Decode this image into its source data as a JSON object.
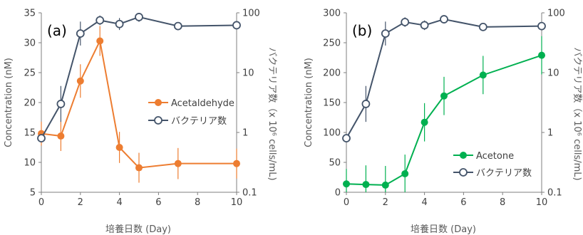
{
  "chart_data": [
    {
      "type": "line",
      "panel_label": "(a)",
      "xlabel": "培養日数 (Day)",
      "ylabel_left": "Concentration (nM)",
      "ylabel_right": "バクテリア数（x 10⁶ cells/mL)",
      "xlim": [
        0,
        10
      ],
      "xticks": [
        "0",
        "2",
        "4",
        "6",
        "8",
        "10"
      ],
      "ylim_left": [
        5,
        35
      ],
      "yticks_left": [
        "5",
        "10",
        "15",
        "20",
        "25",
        "30",
        "35"
      ],
      "ylim_right": [
        0.1,
        100
      ],
      "yscale_right": "log",
      "yticks_right": [
        "0.1",
        "1",
        "10",
        "100"
      ],
      "legend_position": "center-right",
      "series": [
        {
          "name": "Acetaldehyde",
          "axis": "left",
          "color": "#ed7d31",
          "marker": "filled-circle",
          "x": [
            0,
            1,
            2,
            3,
            4,
            5,
            7,
            10
          ],
          "y": [
            14.8,
            14.4,
            23.6,
            30.3,
            12.5,
            9.1,
            9.8,
            9.8
          ],
          "err": [
            2.0,
            2.5,
            2.8,
            2.5,
            2.6,
            2.5,
            2.6,
            2.5
          ]
        },
        {
          "name": "バクテリア数",
          "axis": "right",
          "color": "#44546a",
          "marker": "open-circle",
          "x": [
            0,
            1,
            2,
            3,
            4,
            5,
            7,
            10
          ],
          "y": [
            0.8,
            3.0,
            45,
            75,
            65,
            85,
            60,
            62
          ],
          "err_log": [
            0,
            0.3,
            0.2,
            0.08,
            0.1,
            0.08,
            0.06,
            0.05
          ]
        }
      ]
    },
    {
      "type": "line",
      "panel_label": "(b)",
      "xlabel": "培養日数 (Day)",
      "ylabel_left": "Concentration (nM)",
      "ylabel_right": "バクテリア数（x 10⁶ cells/mL)",
      "xlim": [
        0,
        10
      ],
      "xticks": [
        "0",
        "2",
        "4",
        "6",
        "8",
        "10"
      ],
      "ylim_left": [
        0,
        300
      ],
      "yticks_left": [
        "0",
        "50",
        "100",
        "150",
        "200",
        "250",
        "300"
      ],
      "ylim_right": [
        0.1,
        100
      ],
      "yscale_right": "log",
      "yticks_right": [
        "0.1",
        "1",
        "10",
        "100"
      ],
      "legend_position": "lower-right",
      "series": [
        {
          "name": "Acetone",
          "axis": "left",
          "color": "#00b050",
          "marker": "filled-circle",
          "x": [
            0,
            1,
            2,
            3,
            4,
            5,
            7,
            10
          ],
          "y": [
            14,
            13,
            12,
            31,
            117,
            161,
            196,
            229
          ],
          "err": [
            25,
            32,
            32,
            32,
            32,
            32,
            32,
            32
          ]
        },
        {
          "name": "バクテリア数",
          "axis": "right",
          "color": "#44546a",
          "marker": "open-circle",
          "x": [
            0,
            1,
            2,
            3,
            4,
            5,
            7,
            10
          ],
          "y": [
            0.8,
            3.0,
            45,
            70,
            62,
            78,
            58,
            60
          ],
          "err_log": [
            0,
            0.3,
            0.2,
            0.08,
            0.08,
            0.06,
            0.05,
            0.05
          ]
        }
      ]
    }
  ]
}
